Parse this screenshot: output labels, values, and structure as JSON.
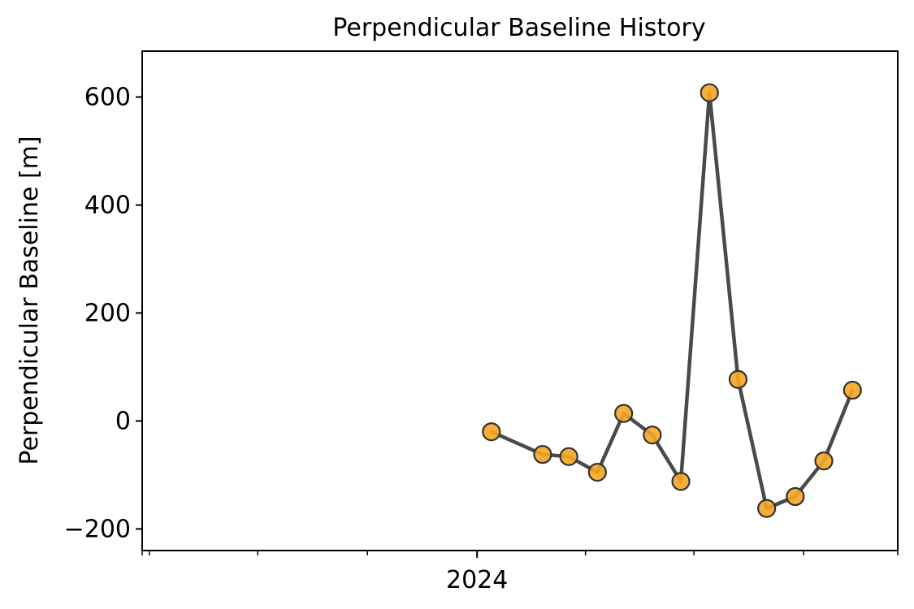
{
  "chart_data": {
    "type": "line",
    "title": "Perpendicular Baseline History",
    "xlabel": "",
    "ylabel": "Perpendicular Baseline [m]",
    "x_tick_labels": [
      {
        "date": "2024-01-01",
        "label": "2024"
      }
    ],
    "y_ticks": [
      {
        "value": -200,
        "label": "−200"
      },
      {
        "value": 0,
        "label": "0"
      },
      {
        "value": 200,
        "label": "200"
      },
      {
        "value": 400,
        "label": "400"
      },
      {
        "value": 600,
        "label": "600"
      }
    ],
    "xlim": [
      "2023-03-26",
      "2024-12-19"
    ],
    "ylim": [
      -240,
      685
    ],
    "grid": false,
    "legend": "none",
    "line_color": "#4a4a4a",
    "marker_face_color": "#f5a623",
    "marker_edge_color": "#333333",
    "series": [
      {
        "points": [
          {
            "x": "2024-01-13",
            "y": -20
          },
          {
            "x": "2024-02-25",
            "y": -62
          },
          {
            "x": "2024-03-18",
            "y": -66
          },
          {
            "x": "2024-04-11",
            "y": -95
          },
          {
            "x": "2024-05-03",
            "y": 14
          },
          {
            "x": "2024-05-27",
            "y": -26
          },
          {
            "x": "2024-06-20",
            "y": -112
          },
          {
            "x": "2024-07-14",
            "y": 608
          },
          {
            "x": "2024-08-07",
            "y": 77
          },
          {
            "x": "2024-08-31",
            "y": -162
          },
          {
            "x": "2024-09-24",
            "y": -140
          },
          {
            "x": "2024-10-18",
            "y": -74
          },
          {
            "x": "2024-11-11",
            "y": 57
          }
        ]
      }
    ]
  }
}
